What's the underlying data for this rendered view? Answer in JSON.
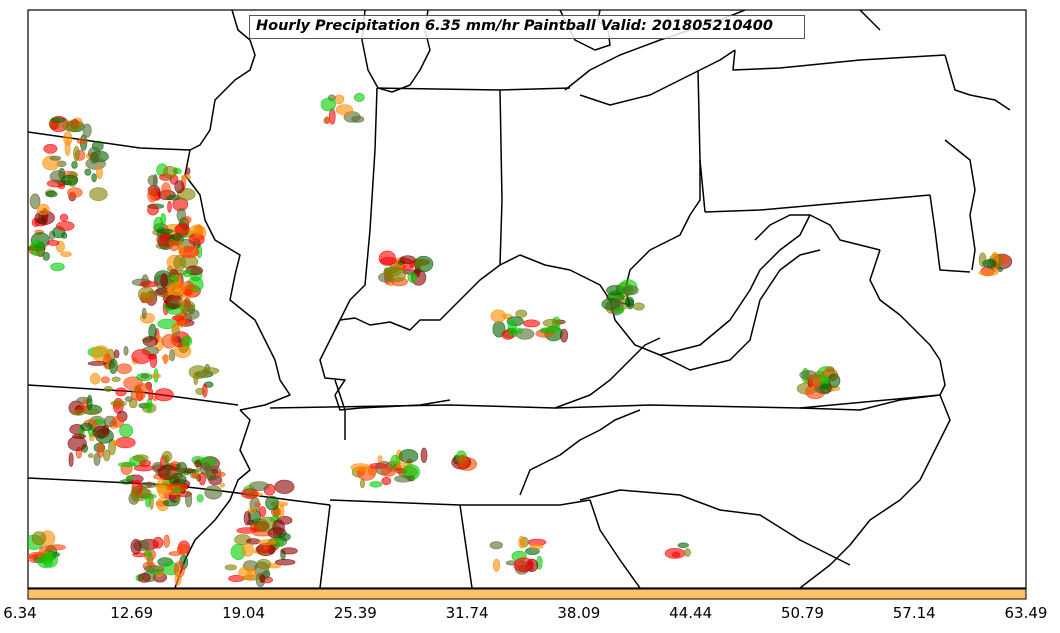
{
  "title": "Hourly Precipitation 6.35 mm/hr Paintball Valid: 201805210400",
  "colorbar": {
    "ticks": [
      "6.34",
      "12.69",
      "19.04",
      "25.39",
      "31.74",
      "38.09",
      "44.44",
      "50.79",
      "57.14",
      "63.49"
    ],
    "fill_color": "#FFC266"
  },
  "colors": {
    "border_lines": "#000000",
    "paintball_palette": [
      "#ff0000",
      "#ff8c00",
      "#00cc00",
      "#006400",
      "#8b0000",
      "#808000",
      "#556b2f",
      "#ff4500"
    ]
  }
}
